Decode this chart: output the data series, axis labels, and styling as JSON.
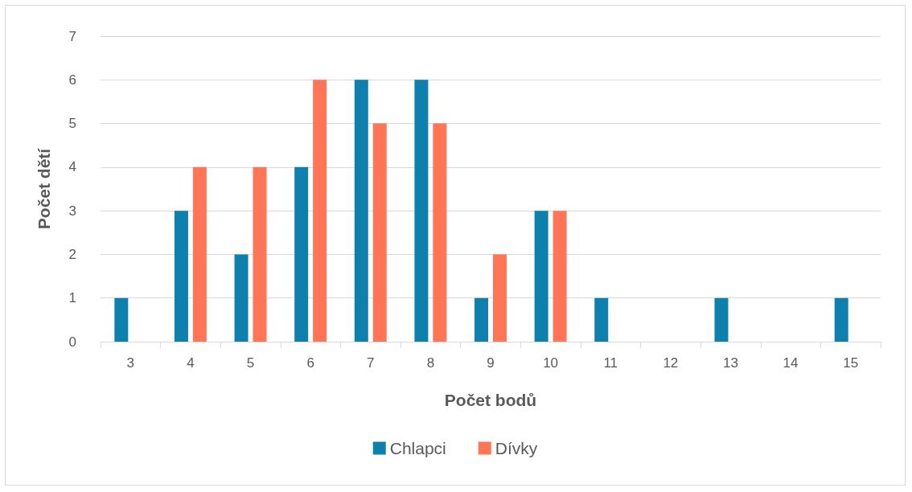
{
  "chart_data": {
    "type": "bar",
    "xlabel": "Počet bodů",
    "ylabel": "Počet dětí",
    "categories": [
      "3",
      "4",
      "5",
      "6",
      "7",
      "8",
      "9",
      "10",
      "11",
      "12",
      "13",
      "14",
      "15"
    ],
    "series": [
      {
        "name": "Chlapci",
        "color": "#0e80ae",
        "values": [
          1,
          3,
          2,
          4,
          6,
          6,
          1,
          3,
          1,
          0,
          1,
          0,
          1
        ]
      },
      {
        "name": "Dívky",
        "color": "#ff7556",
        "values": [
          0,
          4,
          4,
          6,
          5,
          5,
          2,
          3,
          0,
          0,
          0,
          0,
          0
        ]
      }
    ],
    "ylim": [
      0,
      7
    ],
    "yticks": [
      0,
      1,
      2,
      3,
      4,
      5,
      6,
      7
    ],
    "grid": "y",
    "legend": "bottom"
  }
}
